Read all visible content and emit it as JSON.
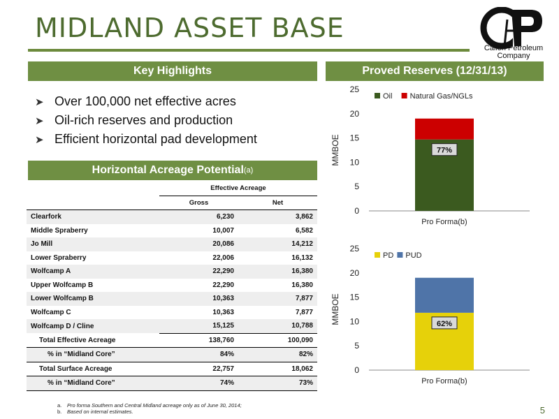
{
  "title": "MIDLAND ASSET BASE",
  "logo": {
    "name": "Callon Petroleum Company",
    "line1": "Callon Petroleum",
    "line2": "Company"
  },
  "key_highlights": {
    "heading": "Key Highlights",
    "bullets": [
      "Over 100,000 net effective acres",
      "Oil-rich reserves and production",
      "Efficient horizontal pad development"
    ]
  },
  "acreage": {
    "heading": "Horizontal Acreage Potential",
    "heading_sup": "(a)",
    "group_header": "Effective Acreage",
    "columns": [
      "Gross",
      "Net"
    ],
    "rows": [
      {
        "label": "Clearfork",
        "gross": "6,230",
        "net": "3,862"
      },
      {
        "label": "Middle Spraberry",
        "gross": "10,007",
        "net": "6,582"
      },
      {
        "label": "Jo Mill",
        "gross": "20,086",
        "net": "14,212"
      },
      {
        "label": "Lower Spraberry",
        "gross": "22,006",
        "net": "16,132"
      },
      {
        "label": "Wolfcamp A",
        "gross": "22,290",
        "net": "16,380"
      },
      {
        "label": "Upper Wolfcamp B",
        "gross": "22,290",
        "net": "16,380"
      },
      {
        "label": "Lower Wolfcamp B",
        "gross": "10,363",
        "net": "7,877"
      },
      {
        "label": "Wolfcamp C",
        "gross": "10,363",
        "net": "7,877"
      },
      {
        "label": "Wolfcamp D / Cline",
        "gross": "15,125",
        "net": "10,788"
      }
    ],
    "totals": [
      {
        "label": "Total Effective Acreage",
        "gross": "138,760",
        "net": "100,090"
      },
      {
        "label": "% in “Midland Core”",
        "gross": "84%",
        "net": "82%"
      },
      {
        "label": "Total Surface Acreage",
        "gross": "22,757",
        "net": "18,062"
      },
      {
        "label": "% in “Midland Core”",
        "gross": "74%",
        "net": "73%"
      }
    ]
  },
  "reserves_heading": "Proved Reserves (12/31/13)",
  "chart_data": [
    {
      "type": "bar",
      "stacked": true,
      "categories": [
        "Pro Forma(b)"
      ],
      "series": [
        {
          "name": "Oil",
          "values": [
            14.7
          ],
          "color": "#3b5a1f"
        },
        {
          "name": "Natural Gas/NGLs",
          "values": [
            4.3
          ],
          "color": "#cc0000"
        }
      ],
      "ylabel": "MMBOE",
      "ylim": [
        0,
        25
      ],
      "yticks": [
        0,
        5,
        10,
        15,
        20,
        25
      ],
      "annotation": "77%",
      "legend": "top-left"
    },
    {
      "type": "bar",
      "stacked": true,
      "categories": [
        "Pro Forma(b)"
      ],
      "series": [
        {
          "name": "PD",
          "values": [
            11.8
          ],
          "color": "#e6d10a"
        },
        {
          "name": "PUD",
          "values": [
            7.2
          ],
          "color": "#4f74a8"
        }
      ],
      "ylabel": "MMBOE",
      "ylim": [
        0,
        25
      ],
      "yticks": [
        0,
        5,
        10,
        15,
        20,
        25
      ],
      "annotation": "62%",
      "legend": "top-left"
    }
  ],
  "footnotes": [
    {
      "label": "a.",
      "text": "Pro forma Southern and Central Midland acreage only as of June 30, 2014;"
    },
    {
      "label": "b.",
      "text": "Based on internal estimates."
    }
  ],
  "page_number": "5",
  "colors": {
    "title": "#4d6b2f",
    "band": "#6f8f43"
  }
}
